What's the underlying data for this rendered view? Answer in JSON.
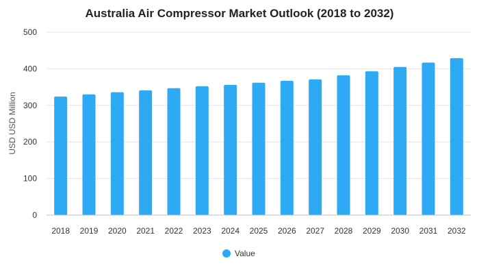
{
  "chart_data": {
    "type": "bar",
    "title": "Australia Air Compressor Market Outlook (2018 to 2032)",
    "xlabel": "",
    "ylabel": "USD USD Million",
    "categories": [
      "2018",
      "2019",
      "2020",
      "2021",
      "2022",
      "2023",
      "2024",
      "2025",
      "2026",
      "2027",
      "2028",
      "2029",
      "2030",
      "2031",
      "2032"
    ],
    "series": [
      {
        "name": "Value",
        "color": "#2eaaf5",
        "values": [
          324,
          330,
          336,
          341,
          347,
          352,
          356,
          362,
          367,
          371,
          382,
          393,
          405,
          417,
          429
        ]
      }
    ],
    "ylim": [
      0,
      500
    ],
    "yticks": [
      0,
      100,
      200,
      300,
      400,
      500
    ],
    "grid": true,
    "legend_position": "bottom-center"
  }
}
